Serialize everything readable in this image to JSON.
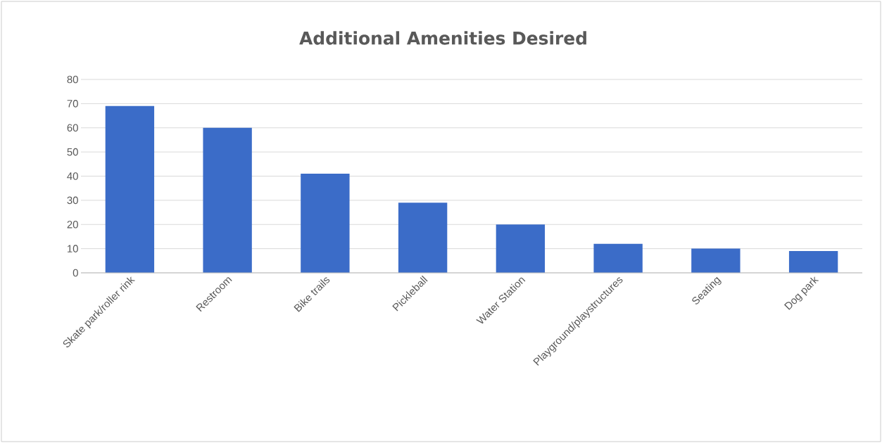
{
  "chart_data": {
    "type": "bar",
    "title": "Additional Amenities Desired",
    "categories": [
      "Skate park/roller rink",
      "Restroom",
      "Bike trails",
      "Pickleball",
      "Water Station",
      "Playground/playstructures",
      "Seating",
      "Dog park"
    ],
    "values": [
      69,
      60,
      41,
      29,
      20,
      12,
      10,
      9
    ],
    "color": "#3b6cc8",
    "ylim": [
      0,
      80
    ],
    "yticks": [
      0,
      10,
      20,
      30,
      40,
      50,
      60,
      70,
      80
    ],
    "grid": "y"
  }
}
